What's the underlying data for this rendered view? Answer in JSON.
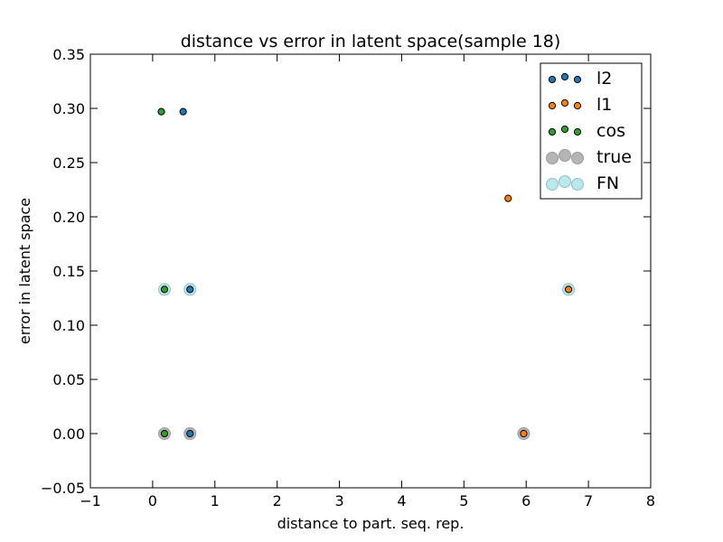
{
  "chart_data": {
    "type": "scatter",
    "title": "distance vs error in latent space(sample 18)",
    "xlabel": "distance to part. seq. rep.",
    "ylabel": "error in latent space",
    "xlim": [
      -1,
      8
    ],
    "ylim": [
      -0.05,
      0.35
    ],
    "xticks": [
      -1,
      0,
      1,
      2,
      3,
      4,
      5,
      6,
      7,
      8
    ],
    "xtick_labels": [
      "−1",
      "0",
      "1",
      "2",
      "3",
      "4",
      "5",
      "6",
      "7",
      "8"
    ],
    "yticks": [
      -0.05,
      0.0,
      0.05,
      0.1,
      0.15,
      0.2,
      0.25,
      0.3,
      0.35
    ],
    "ytick_labels": [
      "−0.05",
      "0.00",
      "0.05",
      "0.10",
      "0.15",
      "0.20",
      "0.25",
      "0.30",
      "0.35"
    ],
    "grid": false,
    "legend_position": "top-right",
    "series": [
      {
        "name": "l2",
        "color": "#1f77b4",
        "marker": "small",
        "points": [
          [
            0.49,
            0.297
          ],
          [
            0.6,
            0.133
          ],
          [
            0.6,
            0.0
          ]
        ]
      },
      {
        "name": "l1",
        "color": "#ff7f0e",
        "marker": "small",
        "points": [
          [
            5.71,
            0.217
          ],
          [
            6.68,
            0.133
          ],
          [
            5.96,
            0.0
          ]
        ]
      },
      {
        "name": "cos",
        "color": "#2ca02c",
        "marker": "small",
        "points": [
          [
            0.14,
            0.297
          ],
          [
            0.19,
            0.133
          ],
          [
            0.19,
            0.0
          ]
        ]
      },
      {
        "name": "true",
        "color": "#a9a9a9",
        "marker": "large",
        "points": [
          [
            0.19,
            0.0
          ],
          [
            0.6,
            0.0
          ],
          [
            5.96,
            0.0
          ]
        ]
      },
      {
        "name": "FN",
        "color": "#b0e4ea",
        "marker": "large",
        "points": [
          [
            0.19,
            0.133
          ],
          [
            0.6,
            0.133
          ],
          [
            6.68,
            0.133
          ]
        ]
      }
    ]
  }
}
